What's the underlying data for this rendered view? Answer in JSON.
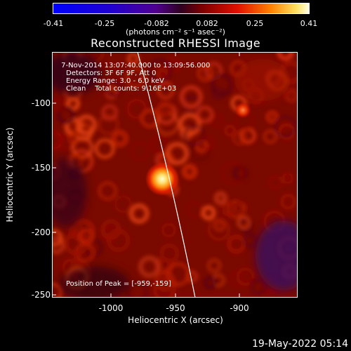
{
  "colorbar": {
    "ticks": [
      "-0.41",
      "-0.25",
      "-0.082",
      "0.082",
      "0.25",
      "0.41"
    ],
    "units": "(photons cm⁻² s⁻¹ asec⁻²)"
  },
  "title": "Reconstructed RHESSI Image",
  "info": {
    "line1": " 7-Nov-2014 13:07:40.000 to 13:09:56.000",
    "line2": "Detectors: 3F 6F 9F, Att 0",
    "line3": "Energy Range: 3.0 - 6.0 keV",
    "line4": "Clean    Total counts: 9.16E+03",
    "peak": "Position of Peak = [-959,-159]"
  },
  "axes": {
    "xlabel": "Heliocentric X (arcsec)",
    "ylabel": "Heliocentric Y (arcsec)",
    "xticks": [
      "-1000",
      "-950",
      "-900"
    ],
    "yticks": [
      "-100",
      "-150",
      "-200",
      "-250"
    ]
  },
  "footer": {
    "date": "19-May-2022 05:14"
  }
}
